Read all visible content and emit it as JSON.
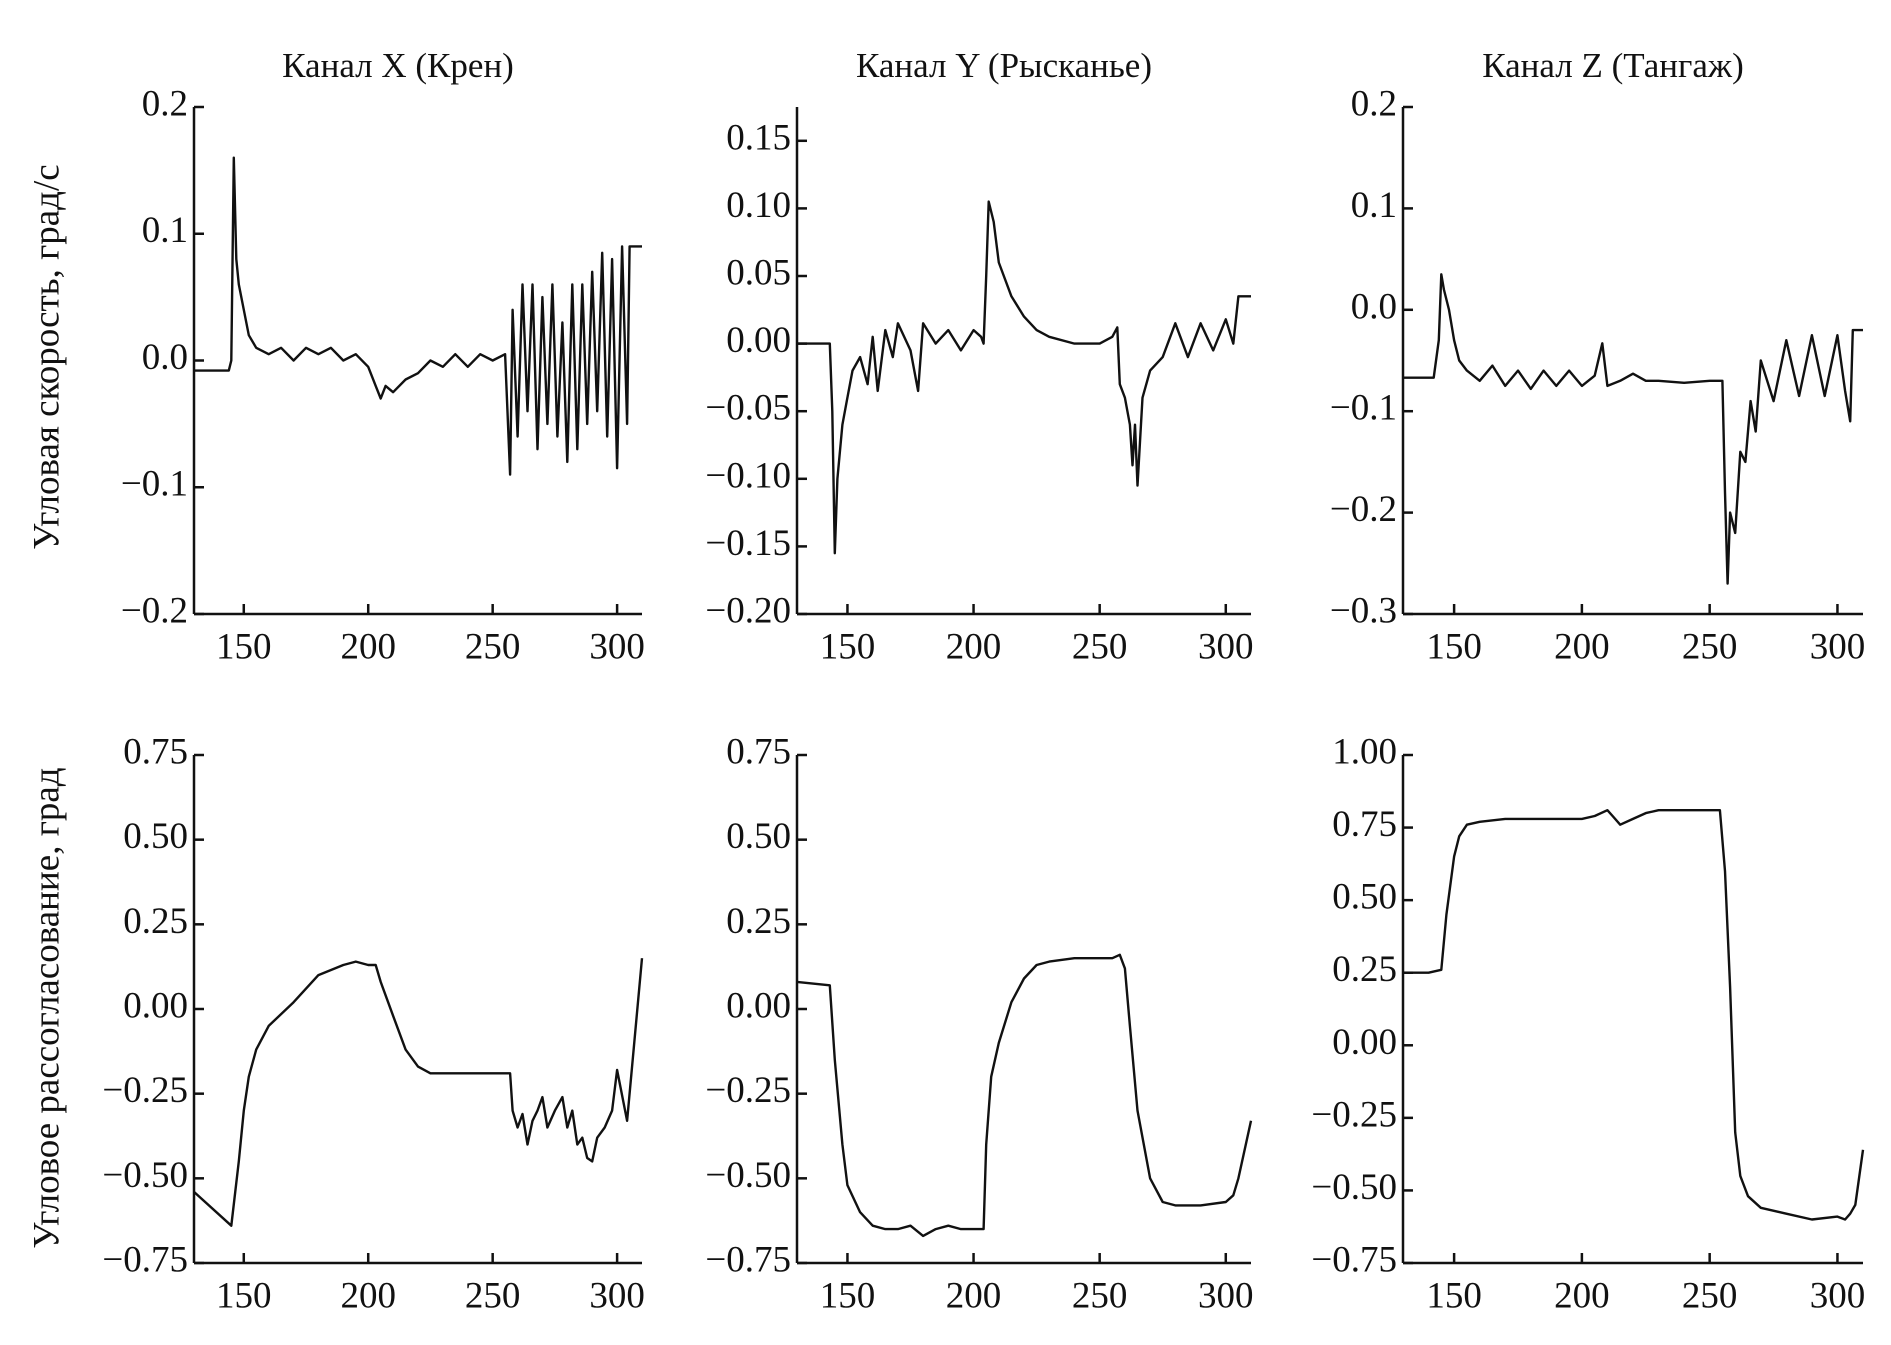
{
  "chart_data": [
    {
      "type": "line",
      "title": "Канал X (Крен)",
      "ylabel": "Угловая скорость, град/с",
      "xlim": [
        130,
        310
      ],
      "xticks": [
        150,
        200,
        250,
        300
      ],
      "ylim": [
        -0.2,
        0.2
      ],
      "yticks": [
        {
          "value": -0.2,
          "label": "−0.2"
        },
        {
          "value": -0.1,
          "label": "−0.1"
        },
        {
          "value": 0,
          "label": "0.0"
        },
        0.1,
        0.2
      ],
      "series": [
        {
          "color": "#111111",
          "x": [
            130,
            144,
            145,
            146,
            147,
            148,
            150,
            152,
            155,
            160,
            165,
            170,
            175,
            180,
            185,
            190,
            195,
            200,
            203,
            205,
            207,
            210,
            215,
            220,
            225,
            230,
            235,
            240,
            245,
            250,
            255,
            257,
            258,
            260,
            262,
            264,
            266,
            268,
            270,
            272,
            274,
            276,
            278,
            280,
            282,
            284,
            286,
            288,
            290,
            292,
            294,
            296,
            298,
            300,
            302,
            304,
            305,
            307,
            310
          ],
          "values": [
            -0.008,
            -0.008,
            0.0,
            0.16,
            0.08,
            0.06,
            0.04,
            0.02,
            0.01,
            0.005,
            0.01,
            0.0,
            0.01,
            0.005,
            0.01,
            0.0,
            0.005,
            -0.005,
            -0.02,
            -0.03,
            -0.02,
            -0.025,
            -0.015,
            -0.01,
            0.0,
            -0.005,
            0.005,
            -0.005,
            0.005,
            0.0,
            0.005,
            -0.09,
            0.04,
            -0.06,
            0.06,
            -0.04,
            0.06,
            -0.07,
            0.05,
            -0.05,
            0.06,
            -0.06,
            0.03,
            -0.08,
            0.06,
            -0.07,
            0.06,
            -0.05,
            0.07,
            -0.04,
            0.085,
            -0.06,
            0.08,
            -0.085,
            0.09,
            -0.05,
            0.09,
            0.09,
            0.09
          ]
        }
      ]
    },
    {
      "type": "line",
      "title": "Канал Y (Рысканье)",
      "xlim": [
        130,
        310
      ],
      "xticks": [
        150,
        200,
        250,
        300
      ],
      "ylim": [
        -0.2,
        0.175
      ],
      "yticks": [
        {
          "value": -0.2,
          "label": "−0.20"
        },
        {
          "value": -0.15,
          "label": "−0.15"
        },
        {
          "value": -0.1,
          "label": "−0.10"
        },
        {
          "value": -0.05,
          "label": "−0.05"
        },
        {
          "value": 0,
          "label": "0.00"
        },
        0.05,
        {
          "value": 0.1,
          "label": "0.10"
        },
        0.15
      ],
      "series": [
        {
          "color": "#111111",
          "x": [
            130,
            143,
            144,
            145,
            146,
            148,
            150,
            152,
            155,
            158,
            160,
            162,
            165,
            168,
            170,
            175,
            178,
            180,
            185,
            190,
            195,
            200,
            203,
            204,
            205,
            206,
            208,
            210,
            215,
            220,
            225,
            230,
            240,
            250,
            255,
            257,
            258,
            260,
            262,
            263,
            264,
            265,
            267,
            270,
            275,
            280,
            285,
            290,
            295,
            300,
            303,
            305,
            306,
            310
          ],
          "values": [
            0.0,
            0.0,
            -0.05,
            -0.155,
            -0.1,
            -0.06,
            -0.04,
            -0.02,
            -0.01,
            -0.03,
            0.005,
            -0.035,
            0.01,
            -0.01,
            0.015,
            -0.005,
            -0.035,
            0.015,
            0.0,
            0.01,
            -0.005,
            0.01,
            0.005,
            0.0,
            0.05,
            0.105,
            0.09,
            0.06,
            0.035,
            0.02,
            0.01,
            0.005,
            0.0,
            0.0,
            0.005,
            0.012,
            -0.03,
            -0.04,
            -0.06,
            -0.09,
            -0.06,
            -0.105,
            -0.04,
            -0.02,
            -0.01,
            0.015,
            -0.01,
            0.015,
            -0.005,
            0.018,
            0.0,
            0.035,
            0.035,
            0.035
          ]
        }
      ]
    },
    {
      "type": "line",
      "title": "Канал Z (Тангаж)",
      "xlim": [
        130,
        310
      ],
      "xticks": [
        150,
        200,
        250,
        300
      ],
      "ylim": [
        -0.3,
        0.2
      ],
      "yticks": [
        {
          "value": -0.3,
          "label": "−0.3"
        },
        {
          "value": -0.2,
          "label": "−0.2"
        },
        {
          "value": -0.1,
          "label": "−0.1"
        },
        {
          "value": 0,
          "label": "0.0"
        },
        0.1,
        0.2
      ],
      "series": [
        {
          "color": "#111111",
          "x": [
            130,
            142,
            144,
            145,
            146,
            148,
            150,
            152,
            155,
            160,
            165,
            170,
            175,
            180,
            185,
            190,
            195,
            200,
            205,
            208,
            210,
            215,
            220,
            225,
            230,
            240,
            250,
            255,
            256,
            257,
            258,
            260,
            262,
            264,
            266,
            268,
            270,
            275,
            280,
            285,
            290,
            295,
            300,
            303,
            305,
            306,
            307,
            310
          ],
          "values": [
            -0.067,
            -0.067,
            -0.03,
            0.035,
            0.02,
            0.0,
            -0.03,
            -0.05,
            -0.06,
            -0.07,
            -0.055,
            -0.075,
            -0.06,
            -0.078,
            -0.06,
            -0.075,
            -0.06,
            -0.075,
            -0.065,
            -0.033,
            -0.075,
            -0.07,
            -0.063,
            -0.07,
            -0.07,
            -0.072,
            -0.07,
            -0.07,
            -0.18,
            -0.27,
            -0.2,
            -0.22,
            -0.14,
            -0.15,
            -0.09,
            -0.12,
            -0.05,
            -0.09,
            -0.03,
            -0.085,
            -0.025,
            -0.085,
            -0.025,
            -0.08,
            -0.11,
            -0.02,
            -0.02,
            -0.02
          ]
        }
      ]
    },
    {
      "type": "line",
      "ylabel": "Угловое рассогласование, град",
      "xlim": [
        130,
        310
      ],
      "xticks": [
        150,
        200,
        250,
        300
      ],
      "ylim": [
        -0.75,
        0.75
      ],
      "yticks": [
        {
          "value": -0.75,
          "label": "−0.75"
        },
        {
          "value": -0.5,
          "label": "−0.50"
        },
        {
          "value": -0.25,
          "label": "−0.25"
        },
        {
          "value": 0,
          "label": "0.00"
        },
        0.25,
        {
          "value": 0.5,
          "label": "0.50"
        },
        0.75
      ],
      "series": [
        {
          "color": "#111111",
          "x": [
            130,
            145,
            148,
            150,
            152,
            155,
            160,
            170,
            180,
            190,
            195,
            200,
            203,
            205,
            210,
            215,
            220,
            225,
            230,
            240,
            250,
            255,
            257,
            258,
            260,
            262,
            264,
            266,
            268,
            270,
            272,
            275,
            278,
            280,
            282,
            284,
            286,
            288,
            290,
            292,
            295,
            298,
            300,
            304,
            310
          ],
          "values": [
            -0.54,
            -0.64,
            -0.45,
            -0.3,
            -0.2,
            -0.12,
            -0.05,
            0.02,
            0.1,
            0.13,
            0.14,
            0.13,
            0.13,
            0.08,
            -0.02,
            -0.12,
            -0.17,
            -0.19,
            -0.19,
            -0.19,
            -0.19,
            -0.19,
            -0.19,
            -0.3,
            -0.35,
            -0.31,
            -0.4,
            -0.33,
            -0.3,
            -0.26,
            -0.35,
            -0.3,
            -0.26,
            -0.35,
            -0.3,
            -0.4,
            -0.38,
            -0.44,
            -0.45,
            -0.38,
            -0.35,
            -0.3,
            -0.18,
            -0.33,
            0.15
          ]
        }
      ]
    },
    {
      "type": "line",
      "xlim": [
        130,
        310
      ],
      "xticks": [
        150,
        200,
        250,
        300
      ],
      "ylim": [
        -0.75,
        0.75
      ],
      "yticks": [
        {
          "value": -0.75,
          "label": "−0.75"
        },
        {
          "value": -0.5,
          "label": "−0.50"
        },
        {
          "value": -0.25,
          "label": "−0.25"
        },
        {
          "value": 0,
          "label": "0.00"
        },
        0.25,
        {
          "value": 0.5,
          "label": "0.50"
        },
        0.75
      ],
      "series": [
        {
          "color": "#111111",
          "x": [
            130,
            143,
            145,
            148,
            150,
            155,
            160,
            165,
            170,
            175,
            180,
            185,
            190,
            195,
            200,
            204,
            205,
            207,
            210,
            215,
            220,
            225,
            230,
            240,
            250,
            255,
            258,
            260,
            262,
            265,
            270,
            275,
            280,
            290,
            300,
            303,
            305,
            310
          ],
          "values": [
            0.08,
            0.07,
            -0.15,
            -0.4,
            -0.52,
            -0.6,
            -0.64,
            -0.65,
            -0.65,
            -0.64,
            -0.67,
            -0.65,
            -0.64,
            -0.65,
            -0.65,
            -0.65,
            -0.4,
            -0.2,
            -0.1,
            0.02,
            0.09,
            0.13,
            0.14,
            0.15,
            0.15,
            0.15,
            0.16,
            0.12,
            -0.05,
            -0.3,
            -0.5,
            -0.57,
            -0.58,
            -0.58,
            -0.57,
            -0.55,
            -0.5,
            -0.33
          ]
        }
      ]
    },
    {
      "type": "line",
      "xlim": [
        130,
        310
      ],
      "xticks": [
        150,
        200,
        250,
        300
      ],
      "ylim": [
        -0.75,
        1.0
      ],
      "yticks": [
        {
          "value": -0.75,
          "label": "−0.75"
        },
        {
          "value": -0.5,
          "label": "−0.50"
        },
        {
          "value": -0.25,
          "label": "−0.25"
        },
        {
          "value": 0,
          "label": "0.00"
        },
        0.25,
        {
          "value": 0.5,
          "label": "0.50"
        },
        0.75,
        {
          "value": 1.0,
          "label": "1.00"
        }
      ],
      "series": [
        {
          "color": "#111111",
          "x": [
            130,
            140,
            145,
            147,
            150,
            152,
            155,
            160,
            170,
            180,
            190,
            200,
            205,
            210,
            212,
            215,
            220,
            225,
            230,
            240,
            250,
            254,
            256,
            258,
            260,
            262,
            265,
            270,
            280,
            290,
            300,
            303,
            305,
            307,
            310
          ],
          "values": [
            0.25,
            0.25,
            0.26,
            0.45,
            0.65,
            0.72,
            0.76,
            0.77,
            0.78,
            0.78,
            0.78,
            0.78,
            0.79,
            0.81,
            0.79,
            0.76,
            0.78,
            0.8,
            0.81,
            0.81,
            0.81,
            0.81,
            0.6,
            0.2,
            -0.3,
            -0.45,
            -0.52,
            -0.56,
            -0.58,
            -0.6,
            -0.59,
            -0.6,
            -0.58,
            -0.55,
            -0.36
          ]
        }
      ]
    }
  ]
}
